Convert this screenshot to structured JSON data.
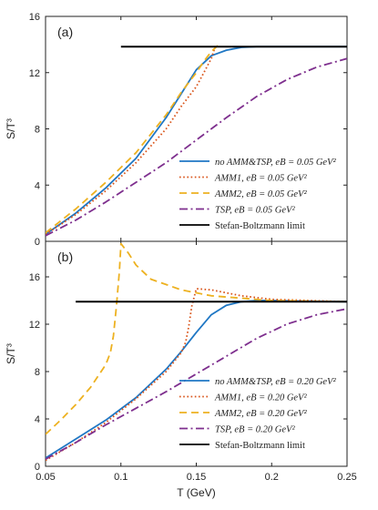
{
  "colors": {
    "no_amm_tsp": "#1f77c4",
    "amm1": "#d9541a",
    "amm2": "#edb120",
    "tsp": "#7e2f8e",
    "sb": "#000000"
  },
  "chart_data": [
    {
      "type": "line",
      "panel_label": "(a)",
      "ylabel": "S/T³",
      "xlabel": "",
      "xlim": [
        0.05,
        0.25
      ],
      "ylim": [
        0,
        16
      ],
      "yticks": [
        "0",
        "4",
        "8",
        "12",
        "16"
      ],
      "xticks": [
        "",
        "",
        "",
        "",
        ""
      ],
      "legend_position": "bottom-right",
      "series": [
        {
          "key": "no_amm_tsp",
          "name": "no AMM&TSP, eB = 0.05 GeV²",
          "style": "solid",
          "x": [
            0.05,
            0.07,
            0.09,
            0.11,
            0.13,
            0.14,
            0.15,
            0.16,
            0.17,
            0.18,
            0.19,
            0.2,
            0.22,
            0.25
          ],
          "y": [
            0.5,
            2.0,
            3.8,
            5.9,
            8.8,
            10.5,
            12.2,
            13.2,
            13.6,
            13.8,
            13.85,
            13.85,
            13.85,
            13.85
          ]
        },
        {
          "key": "amm1",
          "name": "AMM1, eB = 0.05 GeV²",
          "style": "dotted",
          "x": [
            0.05,
            0.07,
            0.09,
            0.11,
            0.13,
            0.14,
            0.15,
            0.155,
            0.16,
            0.163
          ],
          "y": [
            0.5,
            1.9,
            3.6,
            5.6,
            8.0,
            9.6,
            11.0,
            12.0,
            13.0,
            14.0
          ]
        },
        {
          "key": "amm2",
          "name": "AMM2, eB = 0.05 GeV²",
          "style": "dashed",
          "x": [
            0.05,
            0.07,
            0.09,
            0.11,
            0.13,
            0.14,
            0.15,
            0.155,
            0.16,
            0.165
          ],
          "y": [
            0.6,
            2.3,
            4.2,
            6.3,
            9.0,
            10.6,
            12.0,
            12.8,
            13.5,
            14.0
          ]
        },
        {
          "key": "tsp",
          "name": "TSP, eB = 0.05 GeV²",
          "style": "dashdot",
          "x": [
            0.05,
            0.07,
            0.09,
            0.11,
            0.13,
            0.15,
            0.17,
            0.19,
            0.21,
            0.23,
            0.25
          ],
          "y": [
            0.4,
            1.5,
            2.8,
            4.2,
            5.6,
            7.2,
            8.8,
            10.3,
            11.5,
            12.4,
            13.0
          ]
        },
        {
          "key": "sb",
          "name": "Stefan-Boltzmann limit",
          "style": "solid",
          "x": [
            0.1,
            0.25
          ],
          "y": [
            13.85,
            13.85
          ]
        }
      ]
    },
    {
      "type": "line",
      "panel_label": "(b)",
      "ylabel": "S/T³",
      "xlabel": "T (GeV)",
      "xlim": [
        0.05,
        0.25
      ],
      "ylim": [
        0,
        19
      ],
      "yticks": [
        "0",
        "4",
        "8",
        "12",
        "16"
      ],
      "xticks": [
        "0.05",
        "0.1",
        "0.15",
        "0.2",
        "0.25"
      ],
      "legend_position": "bottom-right",
      "series": [
        {
          "key": "no_amm_tsp",
          "name": "no AMM&TSP, eB = 0.20 GeV²",
          "style": "solid",
          "x": [
            0.05,
            0.07,
            0.09,
            0.11,
            0.13,
            0.14,
            0.15,
            0.16,
            0.17,
            0.18,
            0.19,
            0.2,
            0.22,
            0.25
          ],
          "y": [
            0.7,
            2.3,
            3.9,
            5.8,
            8.2,
            9.7,
            11.3,
            12.8,
            13.6,
            13.9,
            14.0,
            14.0,
            13.95,
            13.9
          ]
        },
        {
          "key": "amm1",
          "name": "AMM1, eB = 0.20 GeV²",
          "style": "dotted",
          "x": [
            0.05,
            0.07,
            0.09,
            0.11,
            0.13,
            0.14,
            0.143,
            0.145,
            0.147,
            0.15,
            0.16,
            0.18,
            0.2,
            0.25
          ],
          "y": [
            0.5,
            2.0,
            3.7,
            5.7,
            8.0,
            9.6,
            10.5,
            11.8,
            13.5,
            15.0,
            14.9,
            14.4,
            14.1,
            13.9
          ]
        },
        {
          "key": "amm2",
          "name": "AMM2, eB = 0.20 GeV²",
          "style": "dashed",
          "x": [
            0.05,
            0.06,
            0.07,
            0.08,
            0.09,
            0.093,
            0.095,
            0.097,
            0.099,
            0.1,
            0.105,
            0.11,
            0.12,
            0.14,
            0.16,
            0.18,
            0.2,
            0.25
          ],
          "y": [
            2.7,
            3.9,
            5.2,
            6.7,
            8.6,
            9.6,
            11.0,
            13.5,
            16.5,
            18.8,
            18.0,
            17.0,
            15.8,
            14.9,
            14.4,
            14.2,
            14.0,
            13.9
          ]
        },
        {
          "key": "tsp",
          "name": "TSP, eB = 0.20 GeV²",
          "style": "dashdot",
          "x": [
            0.05,
            0.07,
            0.09,
            0.11,
            0.13,
            0.15,
            0.17,
            0.19,
            0.21,
            0.23,
            0.25
          ],
          "y": [
            0.6,
            2.0,
            3.5,
            4.9,
            6.3,
            7.8,
            9.3,
            10.8,
            12.0,
            12.8,
            13.3
          ]
        },
        {
          "key": "sb",
          "name": "Stefan-Boltzmann limit",
          "style": "solid",
          "x": [
            0.07,
            0.25
          ],
          "y": [
            13.9,
            13.9
          ]
        }
      ]
    }
  ]
}
